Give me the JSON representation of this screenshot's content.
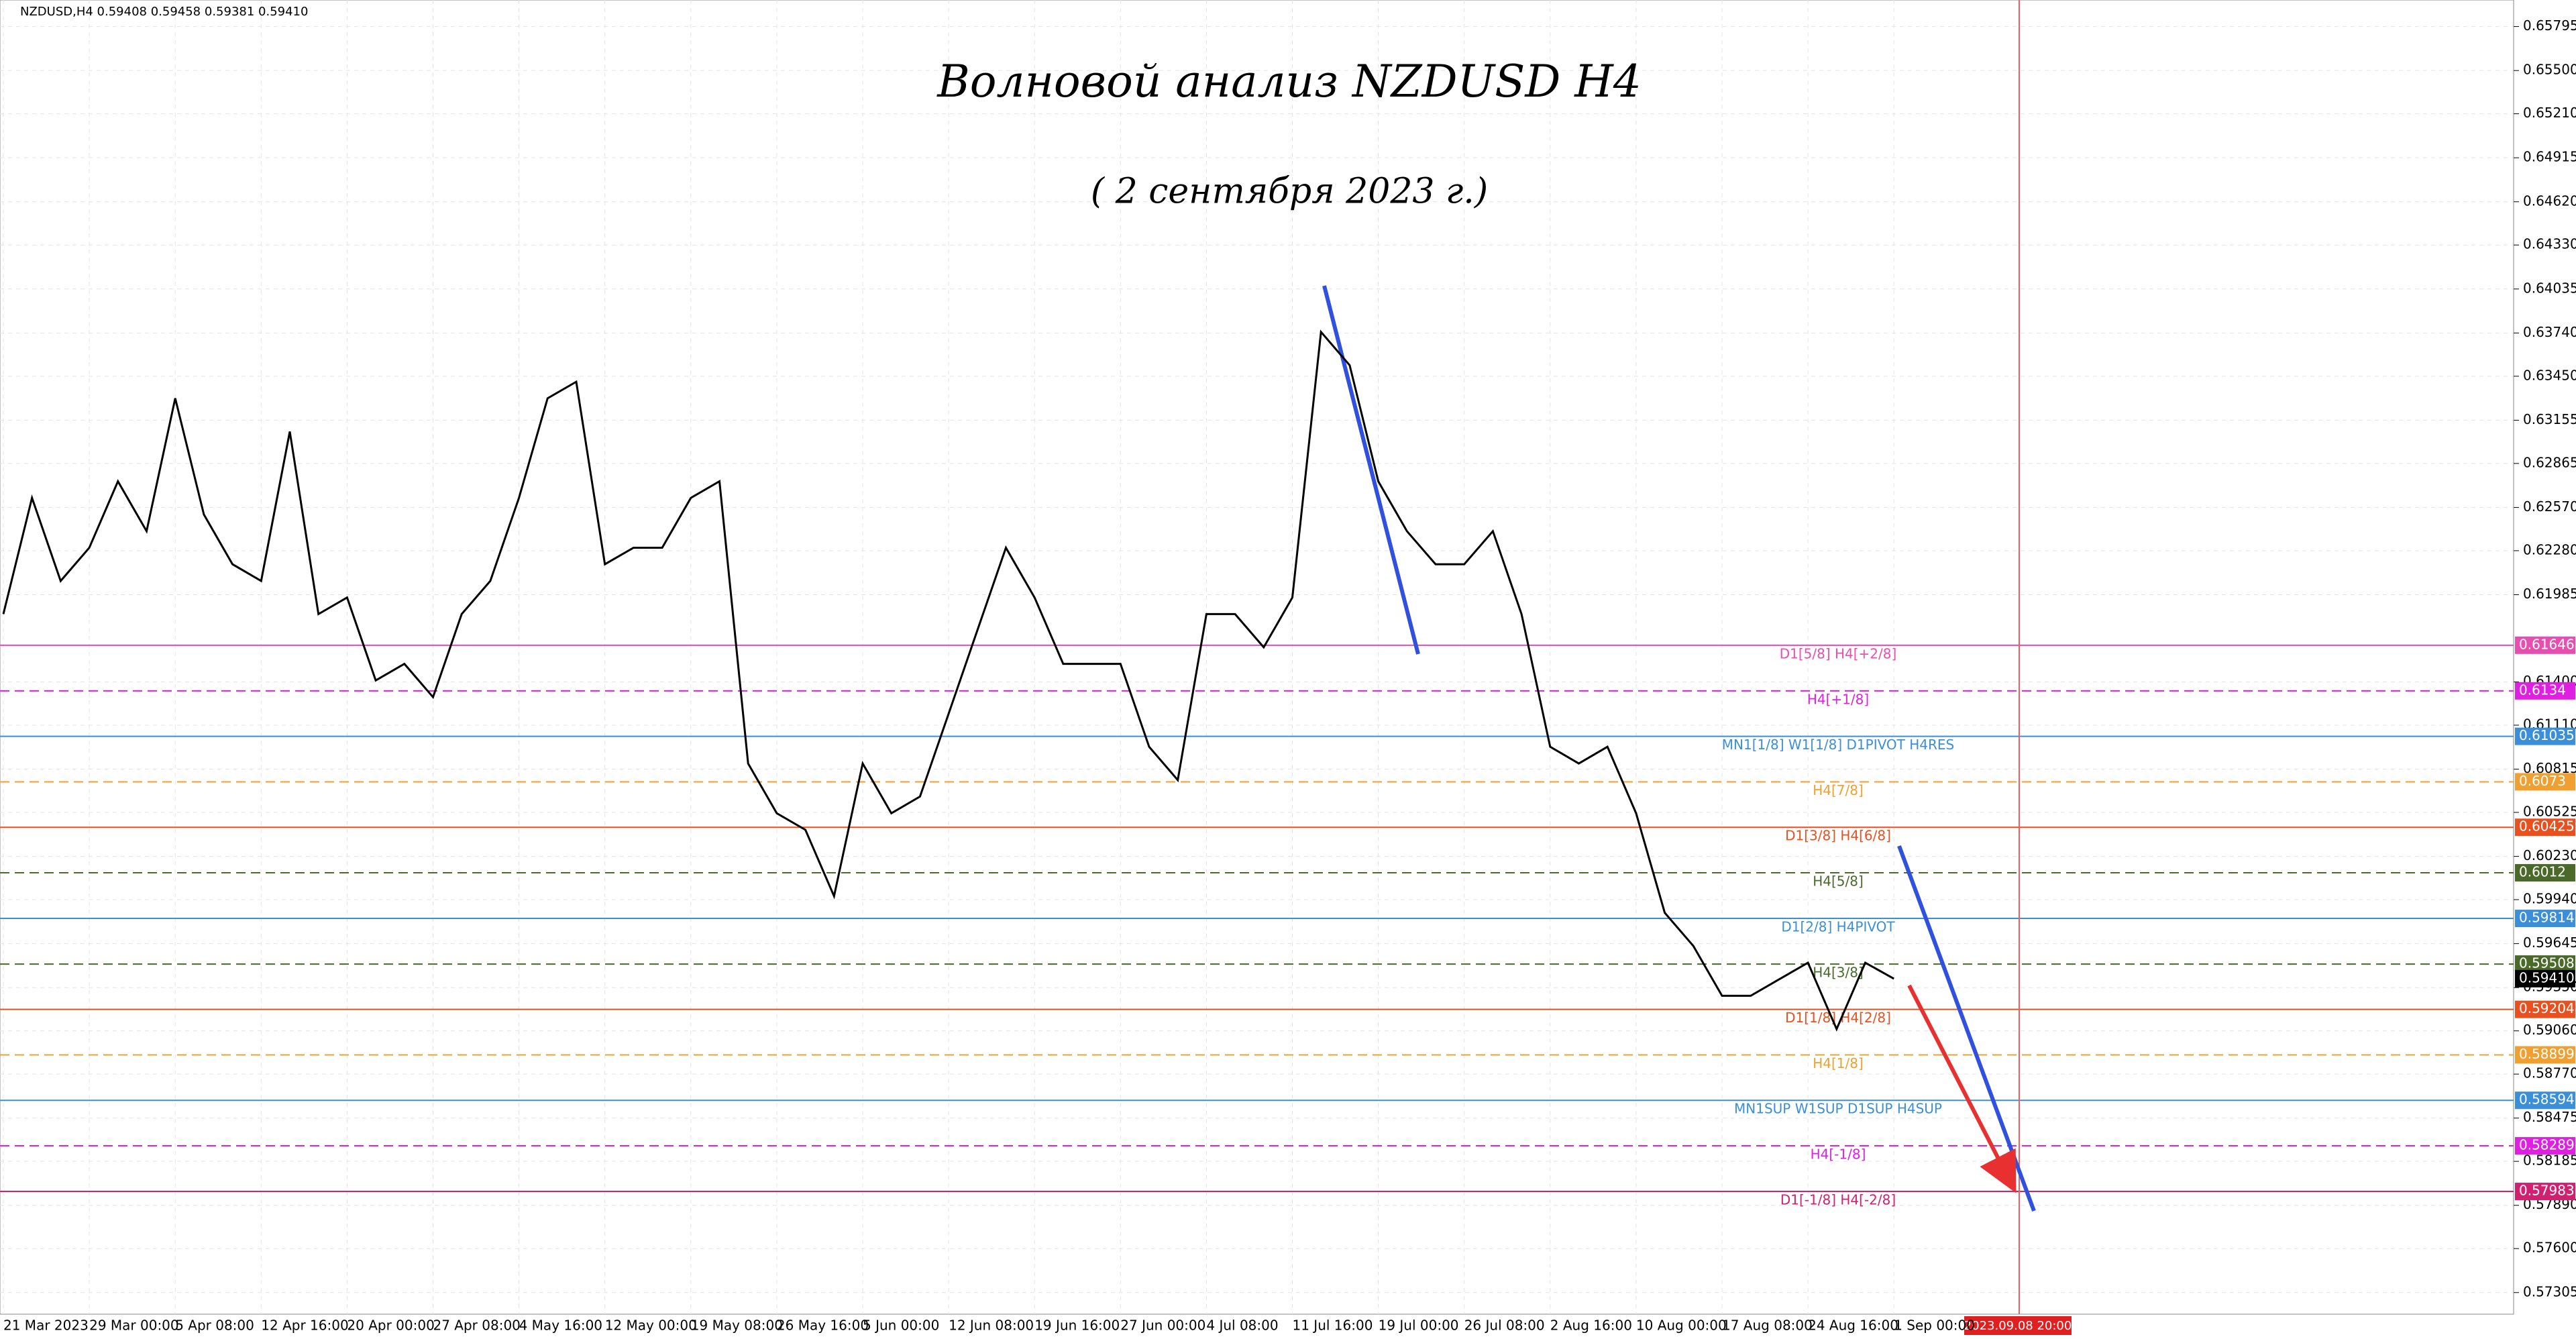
{
  "header": "NZDUSD,H4  0.59408 0.59458 0.59381 0.59410",
  "chart_data": {
    "type": "line",
    "title": "Волновой анализ NZDUSD H4",
    "subtitle": "( 2 сентября 2023 г.)",
    "categories": [
      "21 Mar 2023",
      null,
      null,
      "29 Mar 00:00",
      null,
      null,
      "5 Apr 08:00",
      null,
      null,
      "12 Apr 16:00",
      null,
      null,
      "20 Apr 00:00",
      null,
      null,
      "27 Apr 08:00",
      null,
      null,
      "4 May 16:00",
      null,
      null,
      "12 May 00:00",
      null,
      null,
      "19 May 08:00",
      null,
      null,
      "26 May 16:00",
      null,
      null,
      "5 Jun 00:00",
      null,
      null,
      "12 Jun 08:00",
      null,
      null,
      "19 Jun 16:00",
      null,
      null,
      "27 Jun 00:00",
      null,
      null,
      "4 Jul 08:00",
      null,
      null,
      "11 Jul 16:00",
      null,
      null,
      "19 Jul 00:00",
      null,
      null,
      "26 Jul 08:00",
      null,
      null,
      "2 Aug 16:00",
      null,
      null,
      "10 Aug 00:00",
      null,
      null,
      "17 Aug 08:00",
      null,
      null,
      "24 Aug 16:00",
      null,
      null,
      "1 Sep 00:00"
    ],
    "series": [
      {
        "name": "NZDUSD",
        "color": "#000000",
        "values": [
          0.61855,
          0.62634,
          0.62077,
          0.623,
          0.62745,
          0.62411,
          0.63302,
          0.62523,
          0.62189,
          0.62077,
          0.63079,
          0.61855,
          0.61966,
          0.6141,
          0.61521,
          0.61298,
          0.61855,
          0.62077,
          0.62634,
          0.63302,
          0.63413,
          0.62189,
          0.623,
          0.623,
          0.62634,
          0.62745,
          0.60853,
          0.60519,
          0.60408,
          0.59963,
          0.60853,
          0.60519,
          0.60631,
          0.61187,
          0.61744,
          0.623,
          0.61966,
          0.61521,
          0.61521,
          0.61521,
          0.60965,
          0.60742,
          0.61855,
          0.61855,
          0.61632,
          0.61966,
          0.63747,
          0.63524,
          0.62745,
          0.62411,
          0.62189,
          0.62189,
          0.62411,
          0.61855,
          0.60965,
          0.60853,
          0.60965,
          0.60519,
          0.59852,
          0.59629,
          0.59295,
          0.59295,
          0.59406,
          0.59517,
          0.59072,
          0.59517,
          0.5941
        ]
      }
    ],
    "ylim": [
      0.5716,
      0.65973
    ],
    "yticks": [
      0.65795,
      {
        "value": 0.655,
        "label": "0.65500"
      },
      {
        "value": 0.6521,
        "label": "0.65210"
      },
      0.64915,
      {
        "value": 0.6462,
        "label": "0.64620"
      },
      {
        "value": 0.6433,
        "label": "0.64330"
      },
      0.64035,
      {
        "value": 0.6374,
        "label": "0.63740"
      },
      {
        "value": 0.6345,
        "label": "0.63450"
      },
      0.63155,
      0.62865,
      {
        "value": 0.6257,
        "label": "0.62570"
      },
      {
        "value": 0.6228,
        "label": "0.62280"
      },
      0.61985,
      {
        "value": 0.614,
        "label": "0.61400"
      },
      {
        "value": 0.6111,
        "label": "0.61110"
      },
      0.60815,
      0.60525,
      {
        "value": 0.6023,
        "label": "0.60230"
      },
      {
        "value": 0.5994,
        "label": "0.59940"
      },
      0.59645,
      {
        "value": 0.5935,
        "label": "0.59350"
      },
      {
        "value": 0.5906,
        "label": "0.59060"
      },
      {
        "value": 0.5877,
        "label": "0.58770"
      },
      0.58475,
      0.58185,
      {
        "value": 0.5789,
        "label": "0.57890"
      },
      {
        "value": 0.576,
        "label": "0.57600"
      },
      0.57305
    ],
    "grid": true,
    "levels": [
      {
        "name": "D1[5/8] H4[+2/8]",
        "value": 0.61646,
        "color": "#e64fb0",
        "dashed": false
      },
      {
        "name": "H4[+1/8]",
        "value": 0.6134,
        "color": "#e020e0",
        "dashed": true
      },
      {
        "name": "MN1[1/8] W1[1/8] D1PIVOT H4RES",
        "value": 0.61035,
        "color": "#3a8fd8",
        "dashed": false
      },
      {
        "name": "H4[7/8]",
        "value": 0.6073,
        "color": "#f0a030",
        "dashed": true
      },
      {
        "name": "D1[3/8] H4[6/8]",
        "value": 0.60425,
        "color": "#e85020",
        "dashed": false
      },
      {
        "name": "H4[5/8]",
        "value": 0.6012,
        "color": "#4a6a2a",
        "dashed": true
      },
      {
        "name": "D1[2/8] H4PIVOT",
        "value": 0.59814,
        "color": "#3a8fd8",
        "dashed": false
      },
      {
        "name": "H4[3/8]",
        "value": 0.59508,
        "color": "#4a6a2a",
        "dashed": true
      },
      {
        "name": "D1[1/8] H4[2/8]",
        "value": 0.59204,
        "color": "#e85020",
        "dashed": false
      },
      {
        "name": "H4[1/8]",
        "value": 0.58899,
        "color": "#f0a030",
        "dashed": true
      },
      {
        "name": "MN1SUP W1SUP D1SUP H4SUP",
        "value": 0.58594,
        "color": "#3a8fd8",
        "dashed": false
      },
      {
        "name": "H4[-1/8]",
        "value": 0.58289,
        "color": "#e020e0",
        "dashed": true
      },
      {
        "name": "D1[-1/8] H4[-2/8]",
        "value": 0.57983,
        "color": "#d02070",
        "dashed": false
      }
    ],
    "current_price": {
      "value": 0.5941,
      "label": "0.59410"
    },
    "marker_label": "2023.09.08 20:00"
  }
}
